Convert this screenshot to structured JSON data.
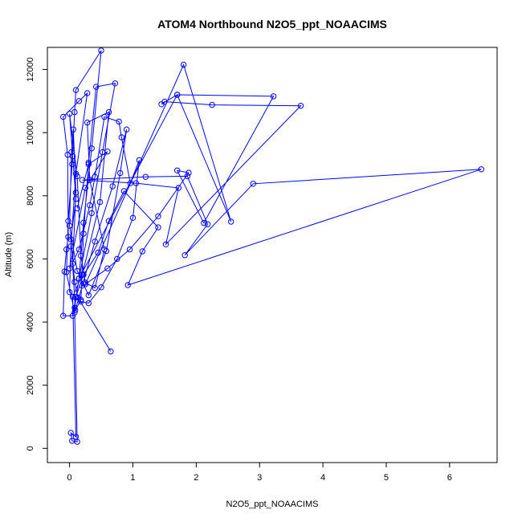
{
  "chart_data": {
    "type": "line",
    "title": "ATOM4 Northbound N2O5_ppt_NOAACIMS",
    "xlabel": "N2O5_ppt_NOAACIMS",
    "ylabel": "Altitude (m)",
    "xlim": [
      -0.35,
      6.75
    ],
    "ylim": [
      -450,
      12700
    ],
    "xticks": [
      0,
      1,
      2,
      3,
      4,
      5,
      6
    ],
    "yticks": [
      0,
      2000,
      4000,
      6000,
      8000,
      10000,
      12000
    ],
    "grid": false,
    "legend": "none",
    "line_color": "#0000ff",
    "marker": "open-circle",
    "series": [
      {
        "points": [
          [
            0.65,
            3070
          ],
          [
            0.13,
            4780
          ],
          [
            0.08,
            5270
          ],
          [
            0.02,
            6620
          ],
          [
            0.1,
            7900
          ],
          [
            0.05,
            9250
          ],
          [
            0.0,
            10600
          ],
          [
            0.12,
            8620
          ],
          [
            0.18,
            6100
          ],
          [
            0.25,
            5250
          ],
          [
            0.4,
            5080
          ],
          [
            0.55,
            6300
          ],
          [
            0.32,
            8500
          ],
          [
            0.28,
            10320
          ],
          [
            0.62,
            10650
          ],
          [
            0.48,
            7800
          ],
          [
            0.2,
            5500
          ],
          [
            0.05,
            4800
          ],
          [
            0.1,
            370
          ],
          [
            0.02,
            490
          ],
          [
            0.04,
            240
          ],
          [
            0.12,
            210
          ],
          [
            0.08,
            4450
          ],
          [
            0.15,
            5380
          ],
          [
            0.35,
            7450
          ],
          [
            0.52,
            9380
          ],
          [
            0.72,
            11560
          ],
          [
            0.42,
            11450
          ],
          [
            0.3,
            9050
          ],
          [
            0.22,
            6800
          ],
          [
            0.18,
            4700
          ],
          [
            0.09,
            4380
          ],
          [
            0.05,
            5850
          ],
          [
            0.1,
            8100
          ],
          [
            0.06,
            10100
          ],
          [
            0.03,
            9380
          ],
          [
            0.0,
            7050
          ],
          [
            0.12,
            5620
          ],
          [
            0.3,
            4850
          ],
          [
            0.58,
            6250
          ],
          [
            0.8,
            8720
          ],
          [
            0.9,
            10100
          ],
          [
            0.68,
            8300
          ],
          [
            0.4,
            6550
          ],
          [
            0.2,
            5150
          ],
          [
            0.08,
            4300
          ],
          [
            -0.05,
            5580
          ],
          [
            -0.02,
            7200
          ],
          [
            0.04,
            9000
          ],
          [
            0.08,
            10650
          ],
          [
            0.1,
            11350
          ],
          [
            0.5,
            12600
          ],
          [
            0.35,
            9500
          ],
          [
            0.22,
            7150
          ],
          [
            0.15,
            5380
          ],
          [
            1.7,
            11200
          ],
          [
            3.22,
            11150
          ],
          [
            2.12,
            7140
          ],
          [
            1.7,
            8800
          ],
          [
            1.88,
            8730
          ],
          [
            1.4,
            7350
          ],
          [
            0.95,
            6300
          ],
          [
            0.6,
            5700
          ],
          [
            0.25,
            5200
          ],
          [
            1.8,
            12150
          ],
          [
            2.55,
            7180
          ],
          [
            1.7,
            11200
          ],
          [
            1.45,
            10900
          ],
          [
            1.5,
            10980
          ],
          [
            2.25,
            10880
          ],
          [
            3.65,
            10850
          ],
          [
            1.52,
            6460
          ],
          [
            1.72,
            8250
          ],
          [
            1.05,
            8400
          ],
          [
            0.2,
            8500
          ],
          [
            1.2,
            8600
          ],
          [
            1.86,
            8620
          ],
          [
            2.18,
            7100
          ],
          [
            1.82,
            6120
          ],
          [
            2.9,
            8380
          ],
          [
            6.5,
            8840
          ],
          [
            0.92,
            5170
          ],
          [
            1.15,
            6240
          ],
          [
            1.4,
            7000
          ],
          [
            0.86,
            8150
          ],
          [
            0.62,
            7200
          ],
          [
            0.45,
            6200
          ],
          [
            0.22,
            5500
          ],
          [
            0.1,
            4800
          ],
          [
            0.05,
            4200
          ],
          [
            -0.1,
            4200
          ],
          [
            -0.08,
            5600
          ],
          [
            -0.05,
            6300
          ],
          [
            -0.02,
            6700
          ],
          [
            -0.03,
            9300
          ],
          [
            -0.1,
            10500
          ],
          [
            0.15,
            11000
          ],
          [
            0.28,
            11250
          ],
          [
            0.1,
            8700
          ],
          [
            0.02,
            6400
          ],
          [
            0.0,
            4950
          ],
          [
            0.18,
            4650
          ],
          [
            0.3,
            4600
          ],
          [
            0.5,
            5100
          ],
          [
            0.75,
            6000
          ],
          [
            1.0,
            7300
          ],
          [
            1.1,
            9130
          ],
          [
            0.96,
            8400
          ],
          [
            0.82,
            9850
          ],
          [
            0.78,
            10350
          ],
          [
            0.55,
            10500
          ],
          [
            0.4,
            8600
          ],
          [
            0.32,
            7700
          ],
          [
            0.15,
            6300
          ],
          [
            0.0,
            5700
          ],
          [
            0.25,
            8250
          ],
          [
            0.6,
            9400
          ],
          [
            0.3,
            9000
          ],
          [
            0.12,
            7600
          ]
        ]
      }
    ]
  }
}
